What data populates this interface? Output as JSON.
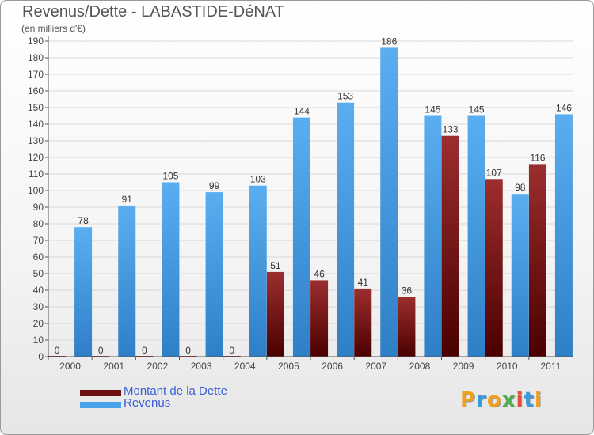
{
  "header": {
    "title": "Revenus/Dette - LABASTIDE-DéNAT",
    "subtitle": "(en milliers d'€)"
  },
  "logo": {
    "text": "Proxiti",
    "letters": [
      "P",
      "r",
      "o",
      "x",
      "i",
      "t",
      "i"
    ],
    "colors": [
      "#f0a020",
      "#3a9ad9",
      "#f0a020",
      "#4caf50",
      "#e94c3d",
      "#3a9ad9",
      "#f0a020"
    ]
  },
  "chart_data": {
    "type": "bar",
    "title": "Revenus/Dette - LABASTIDE-DéNAT",
    "subtitle": "(en milliers d'€)",
    "categories": [
      "2000",
      "2001",
      "2002",
      "2003",
      "2004",
      "2005",
      "2006",
      "2007",
      "2008",
      "2009",
      "2010",
      "2011"
    ],
    "series": [
      {
        "name": "Montant de la Dette",
        "color": "#7a1a1a",
        "values": [
          0,
          0,
          0,
          0,
          0,
          51,
          46,
          41,
          36,
          133,
          107,
          116
        ],
        "labels": [
          "0",
          "0",
          "0",
          "0",
          "0",
          "51",
          "46",
          "41",
          "36",
          "133",
          "107",
          "116"
        ]
      },
      {
        "name": "Revenus",
        "color": "#4aa3e8",
        "values": [
          78,
          91,
          105,
          99,
          103,
          144,
          153,
          186,
          145,
          145,
          98,
          146
        ],
        "labels": [
          "78",
          "91",
          "105",
          "99",
          "103",
          "144",
          "153",
          "186",
          "145",
          "145",
          "98",
          "146"
        ]
      }
    ],
    "ylim": [
      0,
      190
    ],
    "ytick_step": 10,
    "yticks": [
      "0",
      "10",
      "20",
      "30",
      "40",
      "50",
      "60",
      "70",
      "80",
      "90",
      "100",
      "110",
      "120",
      "130",
      "140",
      "150",
      "160",
      "170",
      "180",
      "190"
    ],
    "grid": true,
    "legend": "bottom-left"
  }
}
